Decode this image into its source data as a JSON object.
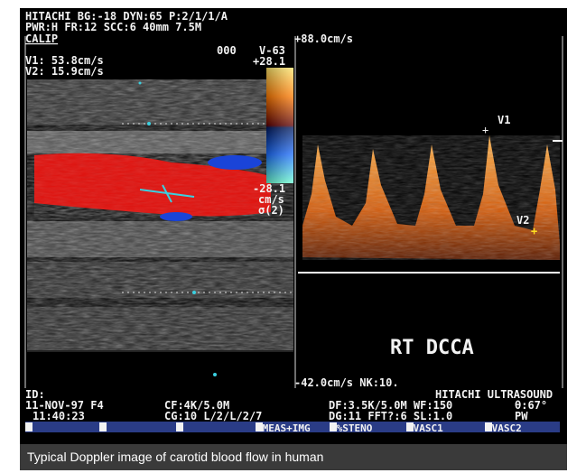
{
  "overlay": {
    "top_line_1": "HITACHI BG:-18 DYN:65 P:2/1/1/A",
    "top_line_2": "PWR:H FR:12 SCC:6 40mm 7.5M",
    "calip": "CALIP",
    "v1_readout": "V1: 53.8cm/s",
    "v2_readout": "V2: 15.9cm/s",
    "color_scale": {
      "code": "000",
      "mode": "V-63",
      "max": "+28.1",
      "min": "-28.1",
      "unit": "cm/s",
      "sigma": "σ(2)"
    },
    "spectrum": {
      "max": "+88.0cm/s",
      "min_line": "-42.0cm/s NK:10.",
      "marker_1": "V1",
      "marker_2": "V2",
      "label": "RT DCCA"
    },
    "footer": {
      "id": "ID:",
      "brand": "HITACHI ULTRASOUND",
      "row1_left": "11-NOV-97 F4",
      "row1_mid": "CF:4K/5.0M",
      "row1_right": "DF:3.5K/5.0M WF:150",
      "row1_angle": "θ:67°",
      "row2_left": "11:40:23",
      "row2_mid": "CG:10 L/2/L/2/7",
      "row2_right": "DG:11 FFT?:6 SL:1.0",
      "row2_mode": "PW"
    },
    "softkeys": [
      "1",
      "2",
      "3",
      "4MEAS+IMG",
      "5%STENO",
      "6VASC1",
      "7VASC2"
    ]
  },
  "caption": "Typical Doppler image of carotid blood flow in human"
}
